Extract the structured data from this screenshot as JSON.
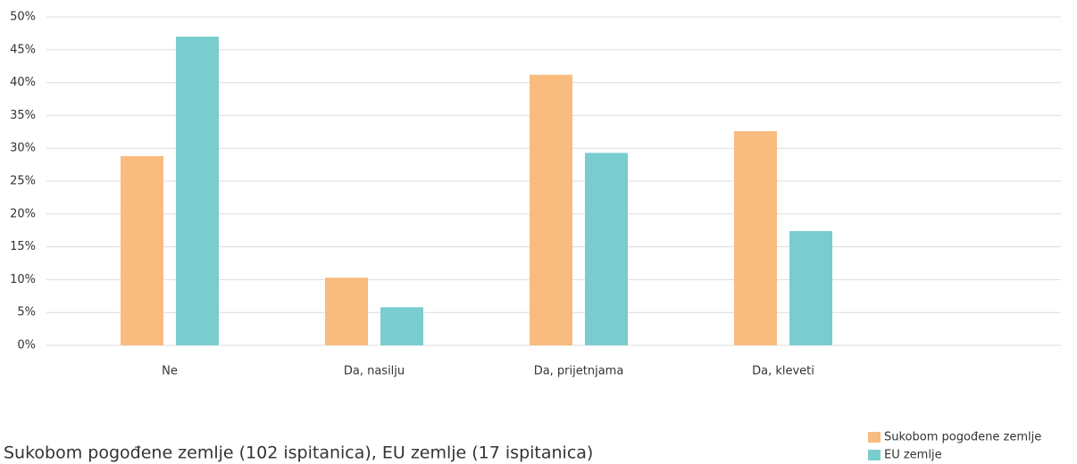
{
  "chart_data": {
    "type": "bar",
    "caption": "Sukobom pogođene zemlje (102 ispitanica), EU zemlje (17 ispitanica)",
    "categories": [
      "Ne",
      "Da, nasilju",
      "Da, prijetnjama",
      "Da, kleveti"
    ],
    "series": [
      {
        "name": "Sukobom pogođene zemlje",
        "color": "#f9bb7e",
        "values": [
          28.8,
          10.3,
          41.2,
          32.6
        ]
      },
      {
        "name": "EU zemlje",
        "color": "#79cdcf",
        "values": [
          47,
          5.8,
          29.3,
          17.4
        ]
      }
    ],
    "ylim": [
      0,
      50
    ],
    "yticks": [
      {
        "value": 0,
        "label": "0%"
      },
      {
        "value": 5,
        "label": "5%"
      },
      {
        "value": 10,
        "label": "10%"
      },
      {
        "value": 15,
        "label": "15%"
      },
      {
        "value": 20,
        "label": "20%"
      },
      {
        "value": 25,
        "label": "25%"
      },
      {
        "value": 30,
        "label": "30%"
      },
      {
        "value": 35,
        "label": "35%"
      },
      {
        "value": 40,
        "label": "40%"
      },
      {
        "value": 45,
        "label": "45%"
      },
      {
        "value": 50,
        "label": "50%"
      }
    ],
    "grid": true,
    "legend": "bottom-right"
  }
}
